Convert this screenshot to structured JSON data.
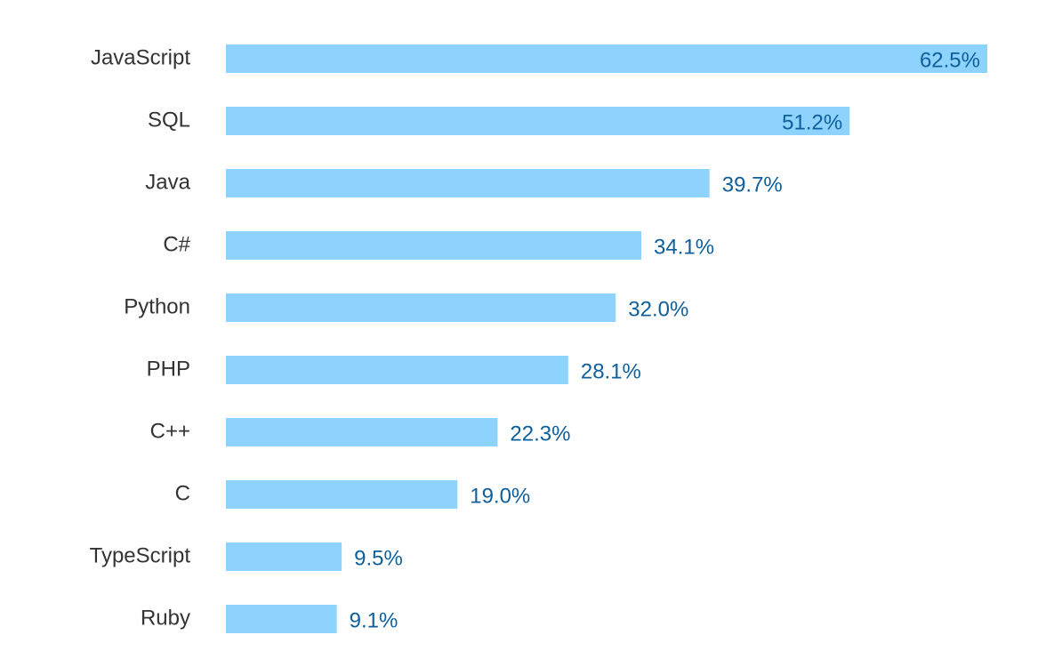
{
  "chart_data": {
    "type": "bar",
    "orientation": "horizontal",
    "title": "",
    "xlabel": "",
    "ylabel": "",
    "categories": [
      "JavaScript",
      "SQL",
      "Java",
      "C#",
      "Python",
      "PHP",
      "C++",
      "C",
      "TypeScript",
      "Ruby"
    ],
    "values": [
      62.5,
      51.2,
      39.7,
      34.1,
      32.0,
      28.1,
      22.3,
      19.0,
      9.5,
      9.1
    ],
    "value_labels": [
      "62.5%",
      "51.2%",
      "39.7%",
      "34.1%",
      "32.0%",
      "28.1%",
      "22.3%",
      "19.0%",
      "9.5%",
      "9.1%"
    ],
    "grid": false,
    "legend": "none",
    "colors": {
      "bar": "#8dd3fd",
      "value_label": "#0e5f9c",
      "category_label": "#333333"
    }
  }
}
